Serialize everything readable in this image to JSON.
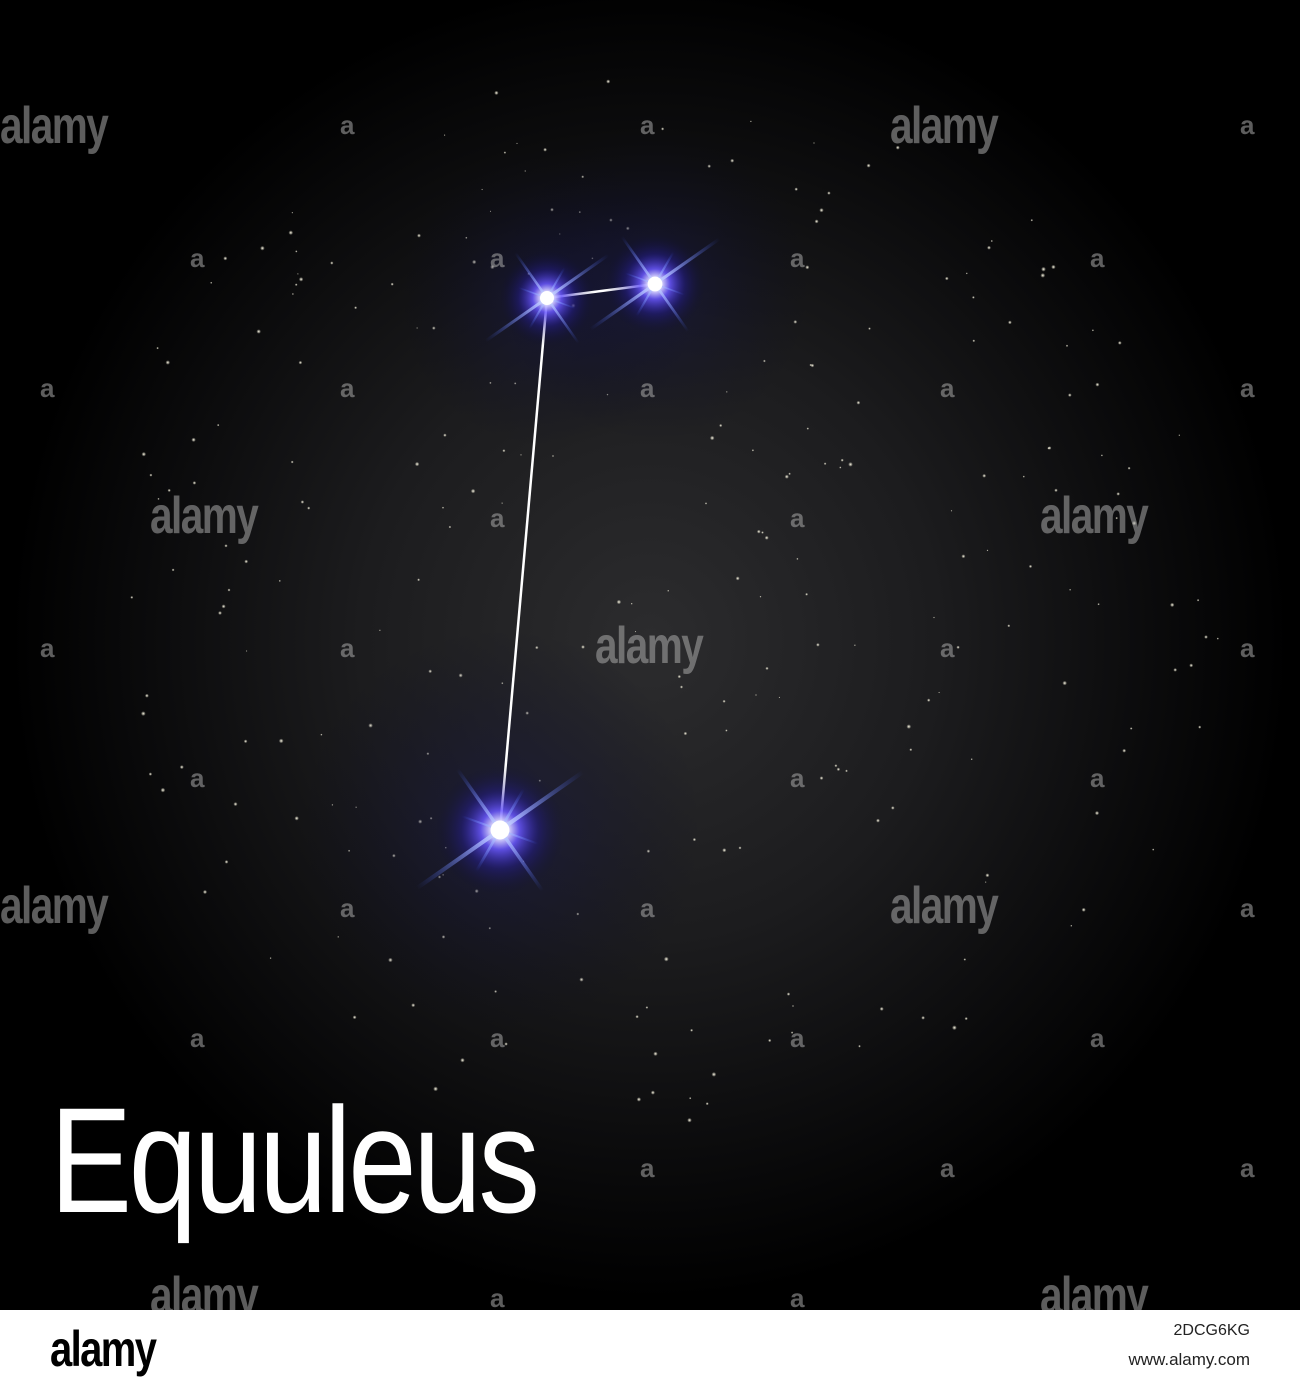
{
  "artwork": {
    "title": "Equuleus",
    "background_color": "#1c1c1e",
    "star_glow_color": "#3a2cff",
    "star_core_color": "#ffffff",
    "line_color": "#ffffff"
  },
  "watermark": {
    "text": "alamy",
    "letter": "a"
  },
  "footer": {
    "logo": "alamy",
    "image_id": "2DCG6KG",
    "url": "www.alamy.com"
  }
}
